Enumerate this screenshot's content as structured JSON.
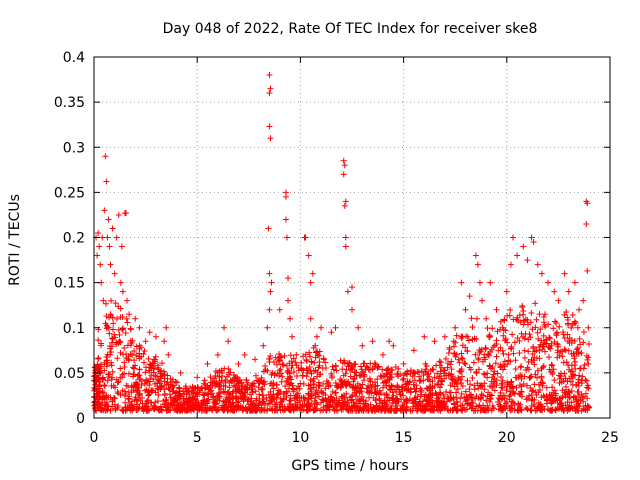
{
  "chart_data": {
    "type": "scatter",
    "title": "Day 048 of 2022, Rate Of TEC Index for receiver ske8",
    "xlabel": "GPS time / hours",
    "ylabel": "ROTI / TECUs",
    "xlim": [
      0,
      25
    ],
    "ylim": [
      0,
      0.4
    ],
    "x_ticks": [
      0,
      5,
      10,
      15,
      20,
      25
    ],
    "x_tick_labels": [
      "0",
      "5",
      "10",
      "15",
      "20",
      "25"
    ],
    "y_ticks": [
      0,
      0.05,
      0.1,
      0.15,
      0.2,
      0.25,
      0.3,
      0.35,
      0.4
    ],
    "y_tick_labels": [
      "0",
      "0.05",
      "0.1",
      "0.15",
      "0.2",
      "0.25",
      "0.3",
      "0.35",
      "0.4"
    ],
    "grid": true,
    "marker": "+",
    "color": "#ff0000",
    "series": [
      {
        "points": [
          [
            0.1,
            0.2
          ],
          [
            0.15,
            0.18
          ],
          [
            0.2,
            0.205
          ],
          [
            0.25,
            0.19
          ],
          [
            0.3,
            0.17
          ],
          [
            0.35,
            0.15
          ],
          [
            0.4,
            0.2
          ],
          [
            0.45,
            0.13
          ],
          [
            0.5,
            0.23
          ],
          [
            0.55,
            0.29
          ],
          [
            0.6,
            0.262
          ],
          [
            0.65,
            0.2
          ],
          [
            0.7,
            0.22
          ],
          [
            0.75,
            0.19
          ],
          [
            0.8,
            0.17
          ],
          [
            0.9,
            0.21
          ],
          [
            1.0,
            0.16
          ],
          [
            1.1,
            0.2
          ],
          [
            1.2,
            0.225
          ],
          [
            1.3,
            0.15
          ],
          [
            1.35,
            0.19
          ],
          [
            1.4,
            0.14
          ],
          [
            1.5,
            0.227
          ],
          [
            1.55,
            0.227
          ],
          [
            1.6,
            0.13
          ],
          [
            1.7,
            0.115
          ],
          [
            2.0,
            0.11
          ],
          [
            2.2,
            0.1
          ],
          [
            2.5,
            0.085
          ],
          [
            2.7,
            0.095
          ],
          [
            3.0,
            0.09
          ],
          [
            3.4,
            0.085
          ],
          [
            3.5,
            0.1
          ],
          [
            3.6,
            0.07
          ],
          [
            4.2,
            0.05
          ],
          [
            5.0,
            0.045
          ],
          [
            5.5,
            0.06
          ],
          [
            6.0,
            0.07
          ],
          [
            6.3,
            0.1
          ],
          [
            6.5,
            0.085
          ],
          [
            7.0,
            0.06
          ],
          [
            7.3,
            0.07
          ],
          [
            7.8,
            0.065
          ],
          [
            8.2,
            0.08
          ],
          [
            8.4,
            0.1
          ],
          [
            8.45,
            0.21
          ],
          [
            8.5,
            0.38
          ],
          [
            8.5,
            0.36
          ],
          [
            8.55,
            0.365
          ],
          [
            8.5,
            0.323
          ],
          [
            8.55,
            0.31
          ],
          [
            8.5,
            0.16
          ],
          [
            8.55,
            0.14
          ],
          [
            8.5,
            0.12
          ],
          [
            8.6,
            0.15
          ],
          [
            9.0,
            0.12
          ],
          [
            9.3,
            0.25
          ],
          [
            9.3,
            0.245
          ],
          [
            9.3,
            0.22
          ],
          [
            9.35,
            0.2
          ],
          [
            9.4,
            0.155
          ],
          [
            9.4,
            0.13
          ],
          [
            9.5,
            0.11
          ],
          [
            9.6,
            0.09
          ],
          [
            9.8,
            0.07
          ],
          [
            10.2,
            0.2
          ],
          [
            10.25,
            0.2
          ],
          [
            10.4,
            0.18
          ],
          [
            10.5,
            0.15
          ],
          [
            10.6,
            0.16
          ],
          [
            10.5,
            0.11
          ],
          [
            10.8,
            0.09
          ],
          [
            11.0,
            0.1
          ],
          [
            11.5,
            0.095
          ],
          [
            11.7,
            0.1
          ],
          [
            12.1,
            0.285
          ],
          [
            12.15,
            0.28
          ],
          [
            12.1,
            0.27
          ],
          [
            12.2,
            0.24
          ],
          [
            12.15,
            0.235
          ],
          [
            12.2,
            0.2
          ],
          [
            12.2,
            0.19
          ],
          [
            12.3,
            0.14
          ],
          [
            12.5,
            0.145
          ],
          [
            12.5,
            0.12
          ],
          [
            12.8,
            0.1
          ],
          [
            13.0,
            0.08
          ],
          [
            13.5,
            0.085
          ],
          [
            14.0,
            0.07
          ],
          [
            14.3,
            0.085
          ],
          [
            14.5,
            0.08
          ],
          [
            15.0,
            0.06
          ],
          [
            15.5,
            0.075
          ],
          [
            16.0,
            0.09
          ],
          [
            16.5,
            0.085
          ],
          [
            17.0,
            0.09
          ],
          [
            17.5,
            0.1
          ],
          [
            17.8,
            0.15
          ],
          [
            18.0,
            0.12
          ],
          [
            18.2,
            0.135
          ],
          [
            18.5,
            0.18
          ],
          [
            18.6,
            0.17
          ],
          [
            18.7,
            0.15
          ],
          [
            18.8,
            0.13
          ],
          [
            19.0,
            0.11
          ],
          [
            19.2,
            0.15
          ],
          [
            19.5,
            0.12
          ],
          [
            19.8,
            0.1
          ],
          [
            20.0,
            0.14
          ],
          [
            20.2,
            0.17
          ],
          [
            20.3,
            0.2
          ],
          [
            20.5,
            0.18
          ],
          [
            20.8,
            0.19
          ],
          [
            21.0,
            0.175
          ],
          [
            21.2,
            0.2
          ],
          [
            21.3,
            0.195
          ],
          [
            21.5,
            0.17
          ],
          [
            21.7,
            0.16
          ],
          [
            22.0,
            0.15
          ],
          [
            22.3,
            0.14
          ],
          [
            22.5,
            0.13
          ],
          [
            22.8,
            0.16
          ],
          [
            23.0,
            0.14
          ],
          [
            23.3,
            0.15
          ],
          [
            23.5,
            0.12
          ],
          [
            23.7,
            0.13
          ],
          [
            23.85,
            0.24
          ],
          [
            23.9,
            0.238
          ],
          [
            23.85,
            0.215
          ],
          [
            23.9,
            0.163
          ],
          [
            23.95,
            0.1
          ],
          [
            23.95,
            0.06
          ]
        ]
      }
    ],
    "background_density": [
      [
        0.0,
        0.09
      ],
      [
        0.5,
        0.13
      ],
      [
        1.0,
        0.13
      ],
      [
        1.5,
        0.12
      ],
      [
        2.0,
        0.09
      ],
      [
        2.5,
        0.075
      ],
      [
        3.0,
        0.07
      ],
      [
        3.5,
        0.055
      ],
      [
        4.0,
        0.04
      ],
      [
        4.5,
        0.035
      ],
      [
        5.0,
        0.035
      ],
      [
        5.5,
        0.045
      ],
      [
        6.0,
        0.055
      ],
      [
        6.5,
        0.055
      ],
      [
        7.0,
        0.045
      ],
      [
        7.5,
        0.045
      ],
      [
        8.0,
        0.05
      ],
      [
        8.5,
        0.07
      ],
      [
        9.0,
        0.075
      ],
      [
        9.5,
        0.07
      ],
      [
        10.0,
        0.065
      ],
      [
        10.5,
        0.085
      ],
      [
        11.0,
        0.075
      ],
      [
        11.5,
        0.06
      ],
      [
        12.0,
        0.065
      ],
      [
        12.5,
        0.06
      ],
      [
        13.0,
        0.06
      ],
      [
        13.5,
        0.065
      ],
      [
        14.0,
        0.055
      ],
      [
        14.5,
        0.06
      ],
      [
        15.0,
        0.05
      ],
      [
        15.5,
        0.055
      ],
      [
        16.0,
        0.06
      ],
      [
        16.5,
        0.06
      ],
      [
        17.0,
        0.07
      ],
      [
        17.5,
        0.09
      ],
      [
        18.0,
        0.1
      ],
      [
        18.5,
        0.12
      ],
      [
        19.0,
        0.1
      ],
      [
        19.5,
        0.1
      ],
      [
        20.0,
        0.12
      ],
      [
        20.5,
        0.13
      ],
      [
        21.0,
        0.12
      ],
      [
        21.5,
        0.13
      ],
      [
        22.0,
        0.11
      ],
      [
        22.5,
        0.12
      ],
      [
        23.0,
        0.12
      ],
      [
        23.5,
        0.11
      ],
      [
        24.0,
        0.09
      ]
    ],
    "x_range_of_data": [
      0,
      24
    ]
  }
}
